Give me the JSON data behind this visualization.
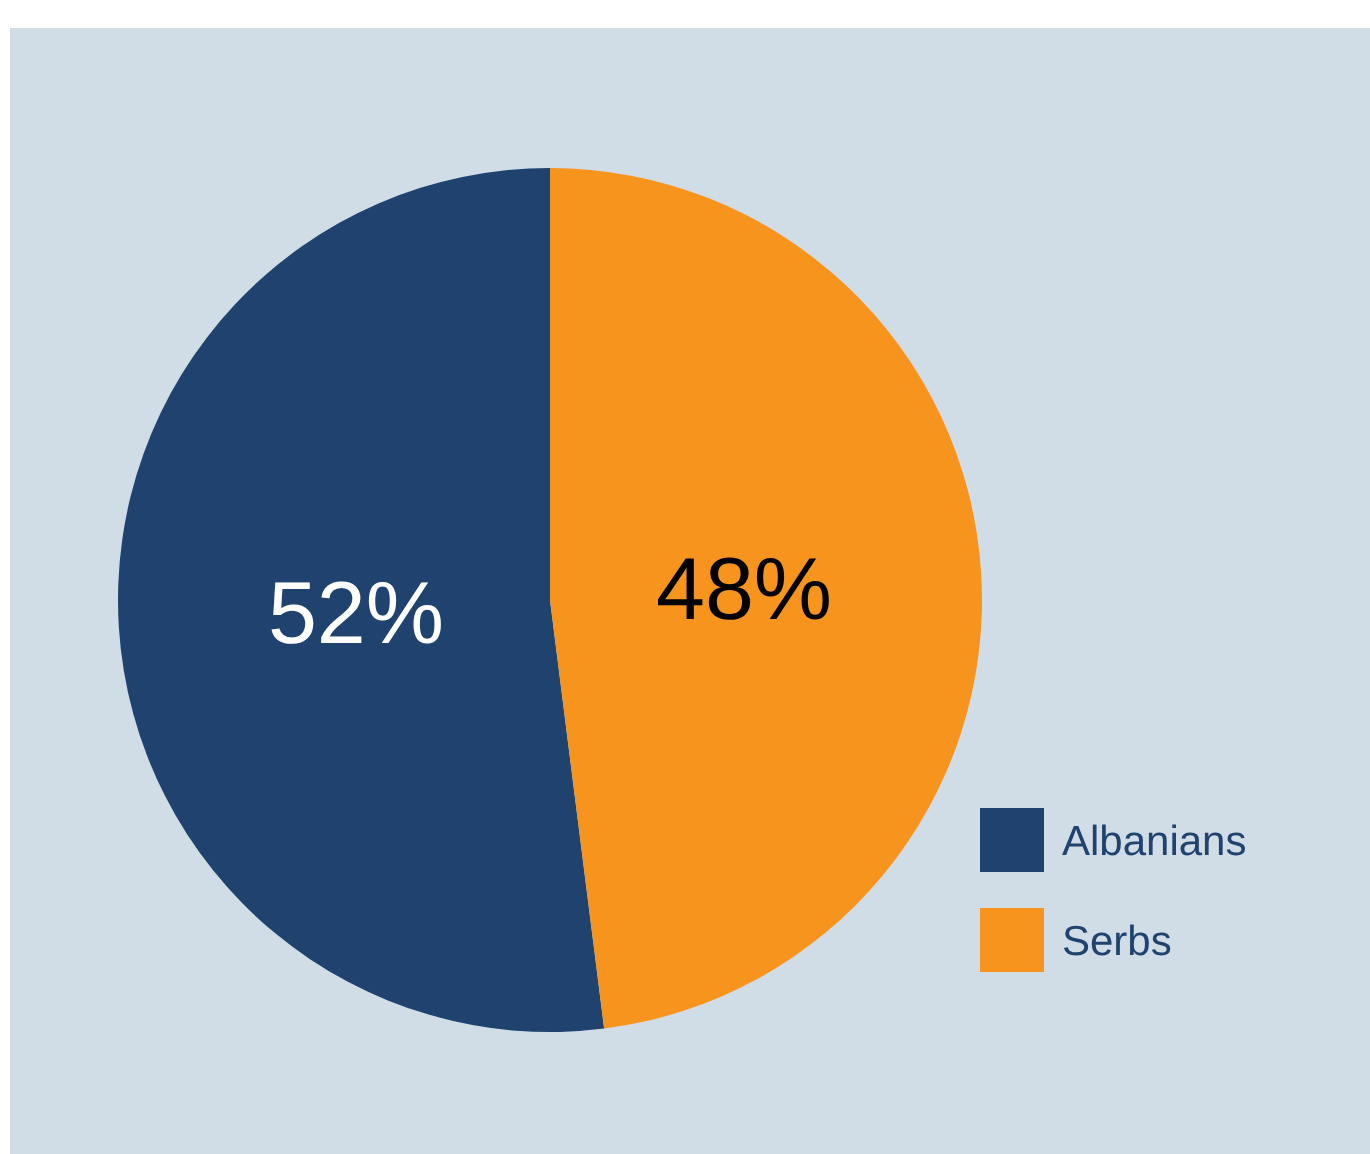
{
  "chart_data": {
    "type": "pie",
    "categories": [
      "Albanians",
      "Serbs"
    ],
    "values": [
      52,
      48
    ],
    "colors": [
      "#1f436e",
      "#f7941e"
    ],
    "value_labels": [
      "52%",
      "48%"
    ],
    "legend": "bottom right"
  }
}
